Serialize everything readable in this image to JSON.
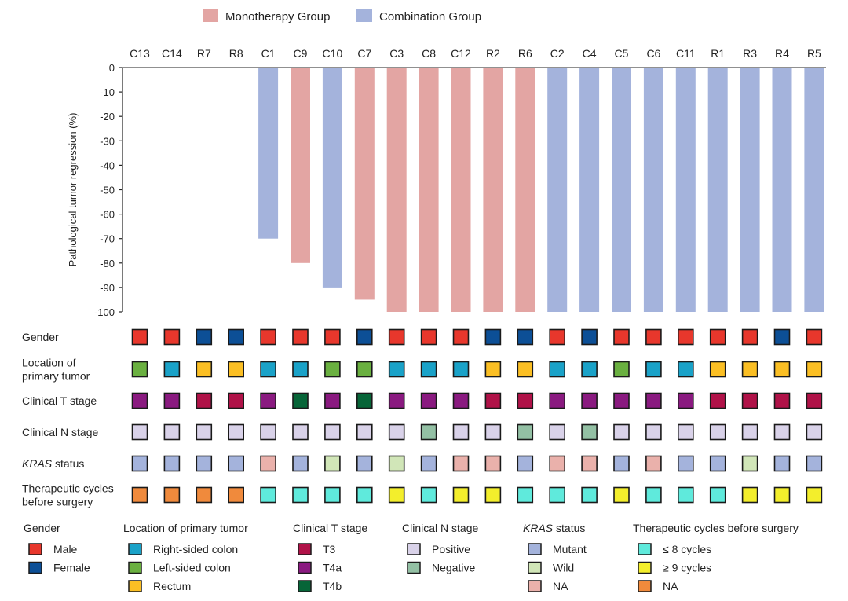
{
  "chart_data": {
    "type": "bar",
    "ylabel": "Pathological tumor regression (%)",
    "ylim": [
      -100,
      0
    ],
    "yticks": [
      0,
      -10,
      -20,
      -30,
      -40,
      -50,
      -60,
      -70,
      -80,
      -90,
      -100
    ],
    "legend_position": "top",
    "legend": [
      {
        "key": "mono",
        "label": "Monotherapy Group",
        "color": "#e3a5a3"
      },
      {
        "key": "combo",
        "label": "Combination Group",
        "color": "#a4b3dc"
      }
    ],
    "patients": [
      {
        "id": "C13",
        "value": 0,
        "group": "mono",
        "gender": "male",
        "location": "left",
        "t_stage": "t4a",
        "n_stage": "pos",
        "kras": "mut",
        "cycles": "na"
      },
      {
        "id": "C14",
        "value": 0,
        "group": "mono",
        "gender": "male",
        "location": "right",
        "t_stage": "t4a",
        "n_stage": "pos",
        "kras": "mut",
        "cycles": "na"
      },
      {
        "id": "R7",
        "value": 0,
        "group": "mono",
        "gender": "female",
        "location": "rectum",
        "t_stage": "t3",
        "n_stage": "pos",
        "kras": "mut",
        "cycles": "na"
      },
      {
        "id": "R8",
        "value": 0,
        "group": "mono",
        "gender": "female",
        "location": "rectum",
        "t_stage": "t3",
        "n_stage": "pos",
        "kras": "mut",
        "cycles": "na"
      },
      {
        "id": "C1",
        "value": -70,
        "group": "combo",
        "gender": "male",
        "location": "right",
        "t_stage": "t4a",
        "n_stage": "pos",
        "kras": "na",
        "cycles": "le8"
      },
      {
        "id": "C9",
        "value": -80,
        "group": "mono",
        "gender": "male",
        "location": "right",
        "t_stage": "t4b",
        "n_stage": "pos",
        "kras": "mut",
        "cycles": "le8"
      },
      {
        "id": "C10",
        "value": -90,
        "group": "combo",
        "gender": "male",
        "location": "left",
        "t_stage": "t4a",
        "n_stage": "pos",
        "kras": "wild",
        "cycles": "le8"
      },
      {
        "id": "C7",
        "value": -95,
        "group": "mono",
        "gender": "female",
        "location": "left",
        "t_stage": "t4b",
        "n_stage": "pos",
        "kras": "mut",
        "cycles": "le8"
      },
      {
        "id": "C3",
        "value": -100,
        "group": "mono",
        "gender": "male",
        "location": "right",
        "t_stage": "t4a",
        "n_stage": "pos",
        "kras": "wild",
        "cycles": "ge9"
      },
      {
        "id": "C8",
        "value": -100,
        "group": "mono",
        "gender": "male",
        "location": "right",
        "t_stage": "t4a",
        "n_stage": "neg",
        "kras": "mut",
        "cycles": "le8"
      },
      {
        "id": "C12",
        "value": -100,
        "group": "mono",
        "gender": "male",
        "location": "right",
        "t_stage": "t4a",
        "n_stage": "pos",
        "kras": "na",
        "cycles": "ge9"
      },
      {
        "id": "R2",
        "value": -100,
        "group": "mono",
        "gender": "female",
        "location": "rectum",
        "t_stage": "t3",
        "n_stage": "pos",
        "kras": "na",
        "cycles": "ge9"
      },
      {
        "id": "R6",
        "value": -100,
        "group": "mono",
        "gender": "female",
        "location": "rectum",
        "t_stage": "t3",
        "n_stage": "neg",
        "kras": "mut",
        "cycles": "le8"
      },
      {
        "id": "C2",
        "value": -100,
        "group": "combo",
        "gender": "male",
        "location": "right",
        "t_stage": "t4a",
        "n_stage": "pos",
        "kras": "na",
        "cycles": "le8"
      },
      {
        "id": "C4",
        "value": -100,
        "group": "combo",
        "gender": "female",
        "location": "right",
        "t_stage": "t4a",
        "n_stage": "neg",
        "kras": "na",
        "cycles": "le8"
      },
      {
        "id": "C5",
        "value": -100,
        "group": "combo",
        "gender": "male",
        "location": "left",
        "t_stage": "t4a",
        "n_stage": "pos",
        "kras": "mut",
        "cycles": "ge9"
      },
      {
        "id": "C6",
        "value": -100,
        "group": "combo",
        "gender": "male",
        "location": "right",
        "t_stage": "t4a",
        "n_stage": "pos",
        "kras": "na",
        "cycles": "le8"
      },
      {
        "id": "C11",
        "value": -100,
        "group": "combo",
        "gender": "male",
        "location": "right",
        "t_stage": "t4a",
        "n_stage": "pos",
        "kras": "mut",
        "cycles": "le8"
      },
      {
        "id": "R1",
        "value": -100,
        "group": "combo",
        "gender": "male",
        "location": "rectum",
        "t_stage": "t3",
        "n_stage": "pos",
        "kras": "mut",
        "cycles": "le8"
      },
      {
        "id": "R3",
        "value": -100,
        "group": "combo",
        "gender": "male",
        "location": "rectum",
        "t_stage": "t3",
        "n_stage": "pos",
        "kras": "wild",
        "cycles": "ge9"
      },
      {
        "id": "R4",
        "value": -100,
        "group": "combo",
        "gender": "female",
        "location": "rectum",
        "t_stage": "t3",
        "n_stage": "pos",
        "kras": "mut",
        "cycles": "ge9"
      },
      {
        "id": "R5",
        "value": -100,
        "group": "combo",
        "gender": "male",
        "location": "rectum",
        "t_stage": "t3",
        "n_stage": "pos",
        "kras": "mut",
        "cycles": "ge9"
      }
    ],
    "tracks": [
      {
        "key": "gender",
        "label_lines": [
          "Gender"
        ]
      },
      {
        "key": "location",
        "label_lines": [
          "Location of",
          "primary tumor"
        ]
      },
      {
        "key": "t_stage",
        "label_lines": [
          "Clinical T stage"
        ]
      },
      {
        "key": "n_stage",
        "label_lines": [
          "Clinical N stage"
        ]
      },
      {
        "key": "kras",
        "label_lines": [
          "KRAS status"
        ],
        "italic_word": "KRAS"
      },
      {
        "key": "cycles",
        "label_lines": [
          "Therapeutic cycles",
          "before surgery"
        ]
      }
    ],
    "categories": {
      "gender": {
        "title": "Gender",
        "items": [
          {
            "key": "male",
            "label": "Male",
            "color": "#e8372c"
          },
          {
            "key": "female",
            "label": "Female",
            "color": "#0c4f96"
          }
        ]
      },
      "location": {
        "title": "Location of primary tumor",
        "items": [
          {
            "key": "right",
            "label": "Right-sided colon",
            "color": "#1aa2c8"
          },
          {
            "key": "left",
            "label": "Left-sided colon",
            "color": "#6ab040"
          },
          {
            "key": "rectum",
            "label": "Rectum",
            "color": "#fbbf24"
          }
        ]
      },
      "t_stage": {
        "title": "Clinical T stage",
        "items": [
          {
            "key": "t3",
            "label": "T3",
            "color": "#b01248"
          },
          {
            "key": "t4a",
            "label": "T4a",
            "color": "#8a1a80"
          },
          {
            "key": "t4b",
            "label": "T4b",
            "color": "#076538"
          }
        ]
      },
      "n_stage": {
        "title": "Clinical N stage",
        "items": [
          {
            "key": "pos",
            "label": "Positive",
            "color": "#d9d2e9"
          },
          {
            "key": "neg",
            "label": "Negative",
            "color": "#93c0a4"
          }
        ]
      },
      "kras": {
        "title": "KRAS status",
        "title_italic": true,
        "items": [
          {
            "key": "mut",
            "label": "Mutant",
            "color": "#a4b3dc"
          },
          {
            "key": "wild",
            "label": "Wild",
            "color": "#d1e6b8"
          },
          {
            "key": "na",
            "label": "NA",
            "color": "#eab1ab"
          }
        ]
      },
      "cycles": {
        "title": "Therapeutic cycles before surgery",
        "items": [
          {
            "key": "le8",
            "label": "≤ 8 cycles",
            "color": "#5feadc"
          },
          {
            "key": "ge9",
            "label": "≥ 9 cycles",
            "color": "#f3ee2c"
          },
          {
            "key": "na",
            "label": "NA",
            "color": "#f08a3c"
          }
        ]
      }
    }
  }
}
